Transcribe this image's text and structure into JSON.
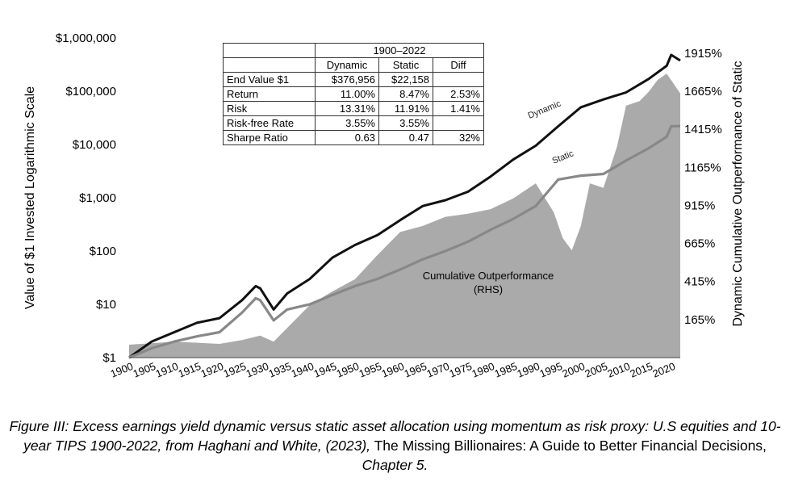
{
  "chart_data": {
    "type": "line",
    "left_axis": {
      "label": "Value of $1 Invested Logarithmic Scale",
      "scale": "log",
      "range": [
        1,
        1000000
      ],
      "ticks": [
        1,
        10,
        100,
        1000,
        10000,
        100000,
        1000000
      ],
      "tick_labels": [
        "$1",
        "$10",
        "$100",
        "$1,000",
        "$10,000",
        "$100,000",
        "$1,000,000"
      ]
    },
    "right_axis": {
      "label": "Dynamic Cumulative Outperformance of Static",
      "scale": "linear",
      "range": [
        -85,
        2015
      ],
      "ticks": [
        165,
        415,
        665,
        915,
        1165,
        1415,
        1665,
        1915
      ],
      "tick_labels": [
        "165%",
        "415%",
        "665%",
        "915%",
        "1165%",
        "1415%",
        "1665%",
        "1915%"
      ]
    },
    "x_axis": {
      "range": [
        1900,
        2022
      ],
      "ticks": [
        1900,
        1905,
        1910,
        1915,
        1920,
        1925,
        1930,
        1935,
        1940,
        1945,
        1950,
        1955,
        1960,
        1965,
        1970,
        1975,
        1980,
        1985,
        1990,
        1995,
        2000,
        2005,
        2010,
        2015,
        2020
      ],
      "tick_labels": [
        "1900",
        "1905",
        "1910",
        "1915",
        "1920",
        "1925",
        "1930",
        "1935",
        "1940",
        "1945",
        "1950",
        "1955",
        "1960",
        "1965",
        "1970",
        "1975",
        "1980",
        "1985",
        "1990",
        "1995",
        "2000",
        "2005",
        "2010",
        "2015",
        "2020"
      ]
    },
    "series": [
      {
        "name": "Dynamic",
        "axis": "left",
        "color": "#111111",
        "x": [
          1900,
          1905,
          1910,
          1915,
          1920,
          1925,
          1928,
          1929,
          1932,
          1935,
          1940,
          1945,
          1950,
          1955,
          1960,
          1965,
          1970,
          1975,
          1980,
          1985,
          1990,
          1995,
          2000,
          2005,
          2010,
          2015,
          2019,
          2020,
          2022
        ],
        "values": [
          1,
          2,
          3,
          4.5,
          5.5,
          12,
          22,
          20,
          8,
          16,
          30,
          75,
          130,
          200,
          380,
          700,
          900,
          1300,
          2500,
          5200,
          9500,
          22000,
          50000,
          70000,
          95000,
          170000,
          300000,
          480000,
          376956
        ]
      },
      {
        "name": "Static",
        "axis": "left",
        "color": "#888888",
        "x": [
          1900,
          1905,
          1910,
          1915,
          1920,
          1925,
          1928,
          1929,
          1932,
          1935,
          1940,
          1945,
          1950,
          1955,
          1960,
          1965,
          1970,
          1975,
          1980,
          1985,
          1990,
          1995,
          2000,
          2005,
          2010,
          2015,
          2019,
          2020,
          2022
        ],
        "values": [
          1,
          1.5,
          2,
          2.5,
          3,
          7,
          13,
          12,
          5,
          8,
          10,
          15,
          22,
          30,
          45,
          70,
          100,
          150,
          250,
          400,
          700,
          2200,
          2600,
          2800,
          5000,
          8500,
          14000,
          22000,
          22158
        ]
      },
      {
        "name": "Cumulative Outperformance (RHS)",
        "axis": "right",
        "type": "area",
        "color": "#aaaaaa",
        "x": [
          1900,
          1910,
          1920,
          1925,
          1929,
          1932,
          1935,
          1940,
          1945,
          1950,
          1955,
          1960,
          1965,
          1970,
          1975,
          1980,
          1985,
          1990,
          1994,
          1996,
          1998,
          2000,
          2002,
          2005,
          2008,
          2010,
          2013,
          2015,
          2017,
          2019,
          2022
        ],
        "values": [
          0,
          20,
          5,
          30,
          60,
          20,
          110,
          260,
          350,
          430,
          590,
          740,
          780,
          840,
          860,
          890,
          960,
          1060,
          870,
          700,
          620,
          780,
          1060,
          1030,
          1300,
          1570,
          1600,
          1660,
          1740,
          1780,
          1650
        ]
      }
    ],
    "annotations": [
      "Dynamic",
      "Static",
      "Cumulative Outperformance",
      "(RHS)"
    ],
    "legend": "none",
    "grid": false
  },
  "stats_table": {
    "period": "1900–2022",
    "headers": [
      "Dynamic",
      "Static",
      "Diff"
    ],
    "rows": [
      {
        "label": "End Value $1",
        "dynamic": "$376,956",
        "static": "$22,158",
        "diff": ""
      },
      {
        "label": "Return",
        "dynamic": "11.00%",
        "static": "8.47%",
        "diff": "2.53%"
      },
      {
        "label": "Risk",
        "dynamic": "13.31%",
        "static": "11.91%",
        "diff": "1.41%"
      },
      {
        "label": "Risk-free Rate",
        "dynamic": "3.55%",
        "static": "3.55%",
        "diff": ""
      },
      {
        "label": "Sharpe Ratio",
        "dynamic": "0.63",
        "static": "0.47",
        "diff": "32%"
      }
    ]
  },
  "caption": {
    "part1": "Figure III: Excess earnings yield dynamic versus static asset allocation using momentum as risk proxy: U.S equities and 10-year TIPS 1900-2022, from Haghani and White, (2023),",
    "book": " The Missing Billionaires: A Guide to Better Financial Decisions,",
    "chapter": " Chapter 5."
  }
}
